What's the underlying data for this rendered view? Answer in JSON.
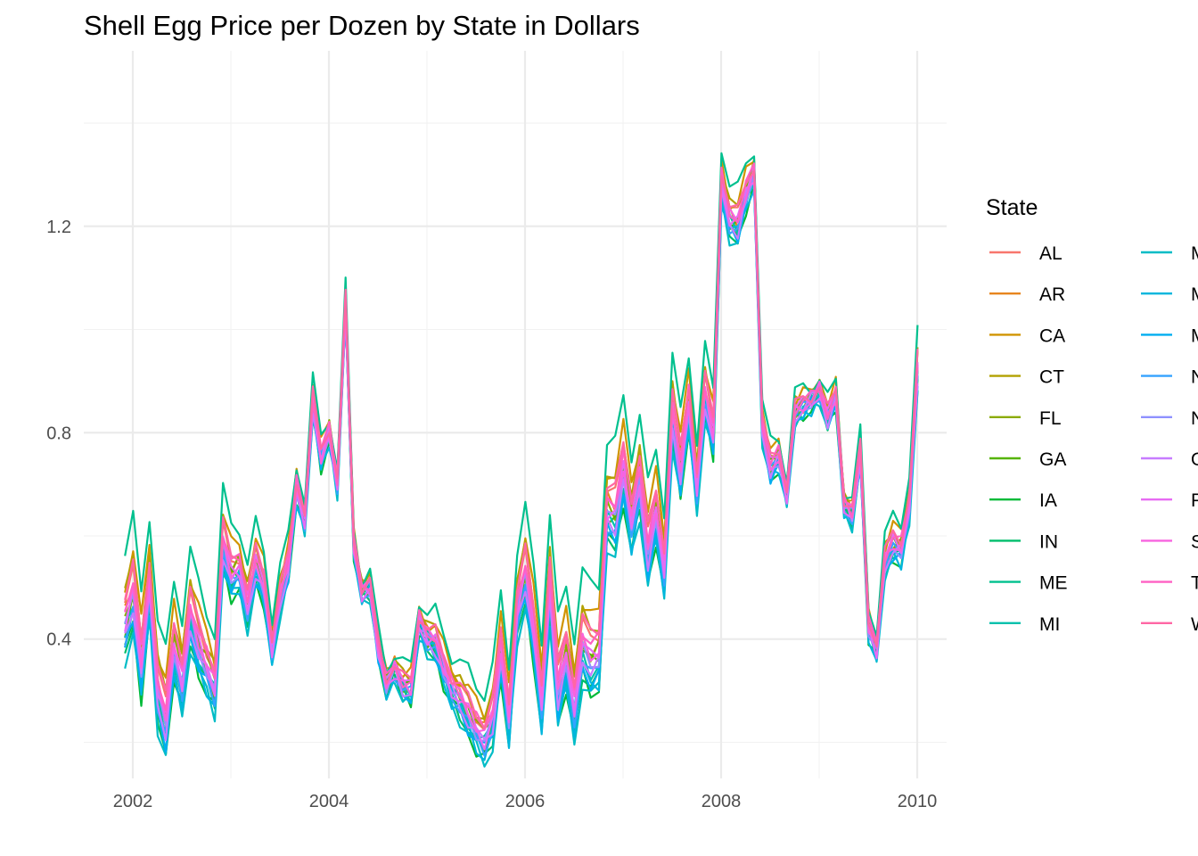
{
  "chart_data": {
    "type": "line",
    "title": "Shell Egg Price per Dozen by State in Dollars",
    "xlabel": "",
    "ylabel": "",
    "x_ticks": [
      2002,
      2004,
      2006,
      2008,
      2010
    ],
    "y_ticks": [
      0.4,
      0.8,
      1.2
    ],
    "y_tick_labels": [
      "0.4",
      "0.8",
      "1.2"
    ],
    "xlim": [
      2001.5,
      2010.3
    ],
    "ylim": [
      0.13,
      1.54
    ],
    "grid": true,
    "legend": {
      "title": "State",
      "position": "right",
      "columns": 2
    },
    "x_start": 2001.92,
    "x_step": 0.0833333,
    "national_average": [
      0.42,
      0.48,
      0.34,
      0.5,
      0.29,
      0.23,
      0.38,
      0.31,
      0.44,
      0.38,
      0.34,
      0.3,
      0.58,
      0.52,
      0.53,
      0.46,
      0.54,
      0.5,
      0.38,
      0.48,
      0.54,
      0.69,
      0.63,
      0.86,
      0.75,
      0.8,
      0.7,
      1.05,
      0.58,
      0.49,
      0.5,
      0.38,
      0.31,
      0.34,
      0.31,
      0.3,
      0.43,
      0.4,
      0.39,
      0.34,
      0.3,
      0.28,
      0.25,
      0.22,
      0.2,
      0.24,
      0.37,
      0.24,
      0.45,
      0.52,
      0.41,
      0.27,
      0.5,
      0.29,
      0.36,
      0.26,
      0.38,
      0.35,
      0.36,
      0.64,
      0.63,
      0.72,
      0.62,
      0.7,
      0.56,
      0.64,
      0.53,
      0.83,
      0.72,
      0.85,
      0.69,
      0.87,
      0.79,
      1.28,
      1.21,
      1.2,
      1.26,
      1.3,
      0.81,
      0.73,
      0.75,
      0.68,
      0.84,
      0.85,
      0.86,
      0.88,
      0.83,
      0.87,
      0.66,
      0.64,
      0.76,
      0.42,
      0.38,
      0.55,
      0.58,
      0.57,
      0.66,
      0.92
    ],
    "series": [
      {
        "name": "AL",
        "color": "#F8766D",
        "offset": 0.05,
        "wiggle": 0.015
      },
      {
        "name": "AR",
        "color": "#E7851E",
        "offset": 0.03,
        "wiggle": 0.02
      },
      {
        "name": "CA",
        "color": "#D09400",
        "offset": 0.09,
        "wiggle": 0.02
      },
      {
        "name": "CT",
        "color": "#B2A100",
        "offset": 0.07,
        "wiggle": 0.015
      },
      {
        "name": "FL",
        "color": "#8BAB00",
        "offset": 0.02,
        "wiggle": 0.02
      },
      {
        "name": "GA",
        "color": "#55B400",
        "offset": 0.0,
        "wiggle": 0.02
      },
      {
        "name": "IA",
        "color": "#00BA38",
        "offset": -0.05,
        "wiggle": 0.02
      },
      {
        "name": "IN",
        "color": "#00BE6C",
        "offset": -0.04,
        "wiggle": 0.02
      },
      {
        "name": "ME",
        "color": "#00C08E",
        "offset": 0.15,
        "wiggle": 0.02
      },
      {
        "name": "MI",
        "color": "#00C0AC",
        "offset": -0.01,
        "wiggle": 0.02
      },
      {
        "name": "MN",
        "color": "#00BCC6",
        "offset": -0.06,
        "wiggle": 0.02
      },
      {
        "name": "MO",
        "color": "#00B6DD",
        "offset": -0.04,
        "wiggle": 0.02
      },
      {
        "name": "MS",
        "color": "#00ADF0",
        "offset": -0.03,
        "wiggle": 0.02
      },
      {
        "name": "NC",
        "color": "#35A2FF",
        "offset": -0.02,
        "wiggle": 0.015
      },
      {
        "name": "NY",
        "color": "#8F91FF",
        "offset": 0.0,
        "wiggle": 0.015
      },
      {
        "name": "OH",
        "color": "#C77CFF",
        "offset": -0.01,
        "wiggle": 0.02
      },
      {
        "name": "PA",
        "color": "#E76BF3",
        "offset": 0.01,
        "wiggle": 0.02
      },
      {
        "name": "SC",
        "color": "#F863DF",
        "offset": 0.02,
        "wiggle": 0.015
      },
      {
        "name": "TX",
        "color": "#FF61C3",
        "offset": 0.04,
        "wiggle": 0.015
      },
      {
        "name": "WA",
        "color": "#FF67A4",
        "offset": 0.06,
        "wiggle": 0.015
      }
    ]
  }
}
